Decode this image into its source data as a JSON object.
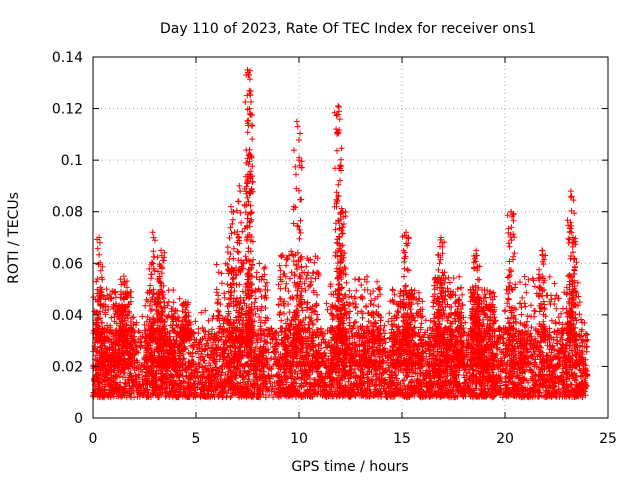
{
  "chart_data": {
    "type": "scatter",
    "title": "Day 110 of 2023, Rate Of TEC Index for receiver ons1",
    "xlabel": "GPS time / hours",
    "ylabel": "ROTI / TECUs",
    "xlim": [
      0,
      25
    ],
    "ylim": [
      0,
      0.14
    ],
    "x_ticks": [
      "0",
      "5",
      "10",
      "15",
      "20",
      "25"
    ],
    "y_ticks": [
      "0",
      "0.02",
      "0.04",
      "0.06",
      "0.08",
      "0.1",
      "0.12",
      "0.14"
    ],
    "grid": true,
    "marker": "+",
    "series": [
      {
        "name": "ROTI",
        "color": "#ff0000",
        "x_range": [
          0,
          24
        ],
        "baseline_range": [
          0.008,
          0.035
        ],
        "peaks": [
          {
            "x": 0.3,
            "y": 0.07
          },
          {
            "x": 1.5,
            "y": 0.055
          },
          {
            "x": 2.9,
            "y": 0.072
          },
          {
            "x": 3.3,
            "y": 0.065
          },
          {
            "x": 4.5,
            "y": 0.045
          },
          {
            "x": 6.7,
            "y": 0.082
          },
          {
            "x": 7.1,
            "y": 0.09
          },
          {
            "x": 7.5,
            "y": 0.135
          },
          {
            "x": 7.6,
            "y": 0.12
          },
          {
            "x": 7.6,
            "y": 0.104
          },
          {
            "x": 9.9,
            "y": 0.115
          },
          {
            "x": 10.0,
            "y": 0.1
          },
          {
            "x": 11.9,
            "y": 0.121
          },
          {
            "x": 12.0,
            "y": 0.098
          },
          {
            "x": 12.1,
            "y": 0.08
          },
          {
            "x": 15.2,
            "y": 0.072
          },
          {
            "x": 16.9,
            "y": 0.07
          },
          {
            "x": 18.6,
            "y": 0.065
          },
          {
            "x": 20.3,
            "y": 0.08
          },
          {
            "x": 21.8,
            "y": 0.065
          },
          {
            "x": 23.2,
            "y": 0.088
          },
          {
            "x": 23.3,
            "y": 0.07
          }
        ]
      }
    ]
  }
}
